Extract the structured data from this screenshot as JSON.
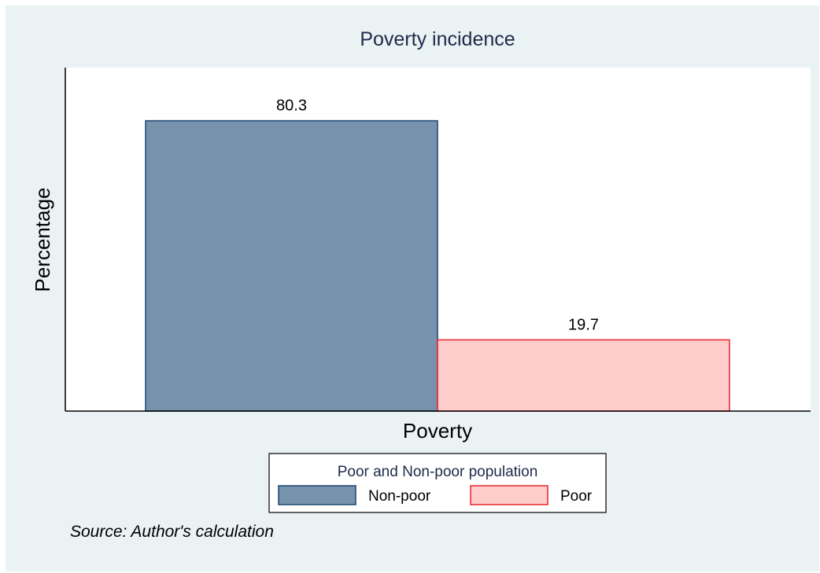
{
  "chart_data": {
    "type": "bar",
    "title": "Poverty incidence",
    "xlabel": "Poverty",
    "ylabel": "Percentage",
    "ylim": [
      0,
      95
    ],
    "grid": false,
    "series": [
      {
        "name": "Non-poor",
        "values": [
          80.3
        ],
        "labels": [
          "80.3"
        ],
        "fill": "#7792ac",
        "stroke": "#1a476f"
      },
      {
        "name": "Poor",
        "values": [
          19.7
        ],
        "labels": [
          "19.7"
        ],
        "fill": "#ffcccc",
        "stroke": "#e8242b"
      }
    ],
    "legend": {
      "title": "Poor and Non-poor population",
      "position": "bottom"
    },
    "note": "Source: Author's calculation"
  },
  "colors": {
    "background": "#eaf2f3",
    "plot_area": "#ffffff",
    "title_text": "#1e2a4a",
    "axis": "#000000"
  }
}
